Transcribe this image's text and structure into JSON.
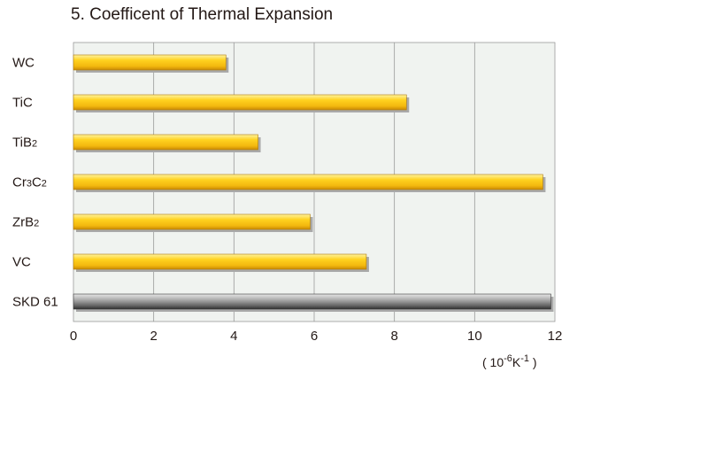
{
  "chart_data": {
    "type": "bar",
    "orientation": "horizontal",
    "title": "5. Coefficent of Thermal Expansion",
    "categories": [
      {
        "label": "WC",
        "parts": [
          {
            "t": "WC",
            "sub": false
          }
        ]
      },
      {
        "label": "TiC",
        "parts": [
          {
            "t": "TiC",
            "sub": false
          }
        ]
      },
      {
        "label": "TiB2",
        "parts": [
          {
            "t": "TiB",
            "sub": false
          },
          {
            "t": "2",
            "sub": true
          }
        ]
      },
      {
        "label": "Cr3C2",
        "parts": [
          {
            "t": "Cr",
            "sub": false
          },
          {
            "t": "3",
            "sub": true
          },
          {
            "t": "C",
            "sub": false
          },
          {
            "t": "2",
            "sub": true
          }
        ]
      },
      {
        "label": "ZrB2",
        "parts": [
          {
            "t": "ZrB",
            "sub": false
          },
          {
            "t": "2",
            "sub": true
          }
        ]
      },
      {
        "label": "VC",
        "parts": [
          {
            "t": "VC",
            "sub": false
          }
        ]
      },
      {
        "label": "SKD 61",
        "parts": [
          {
            "t": "SKD 61",
            "sub": false
          }
        ]
      }
    ],
    "values": [
      3.8,
      8.3,
      4.6,
      11.7,
      5.9,
      7.3,
      11.9
    ],
    "bar_styles": [
      "gold",
      "gold",
      "gold",
      "gold",
      "gold",
      "gold",
      "gray"
    ],
    "xlim": [
      0,
      12
    ],
    "xticks": [
      0,
      2,
      4,
      6,
      8,
      10,
      12
    ],
    "unit_label": {
      "open": "( 10",
      "exp1": "-6",
      "mid": "K",
      "exp2": "-1",
      "close": " )"
    },
    "grid": true,
    "colors": {
      "plot_background": "#f0f3f0",
      "gridline": "#9a9a9a",
      "gold_bar": "#f6c21a",
      "gray_bar": "#8a8a8a",
      "shadow": "#a9a9a9"
    }
  }
}
